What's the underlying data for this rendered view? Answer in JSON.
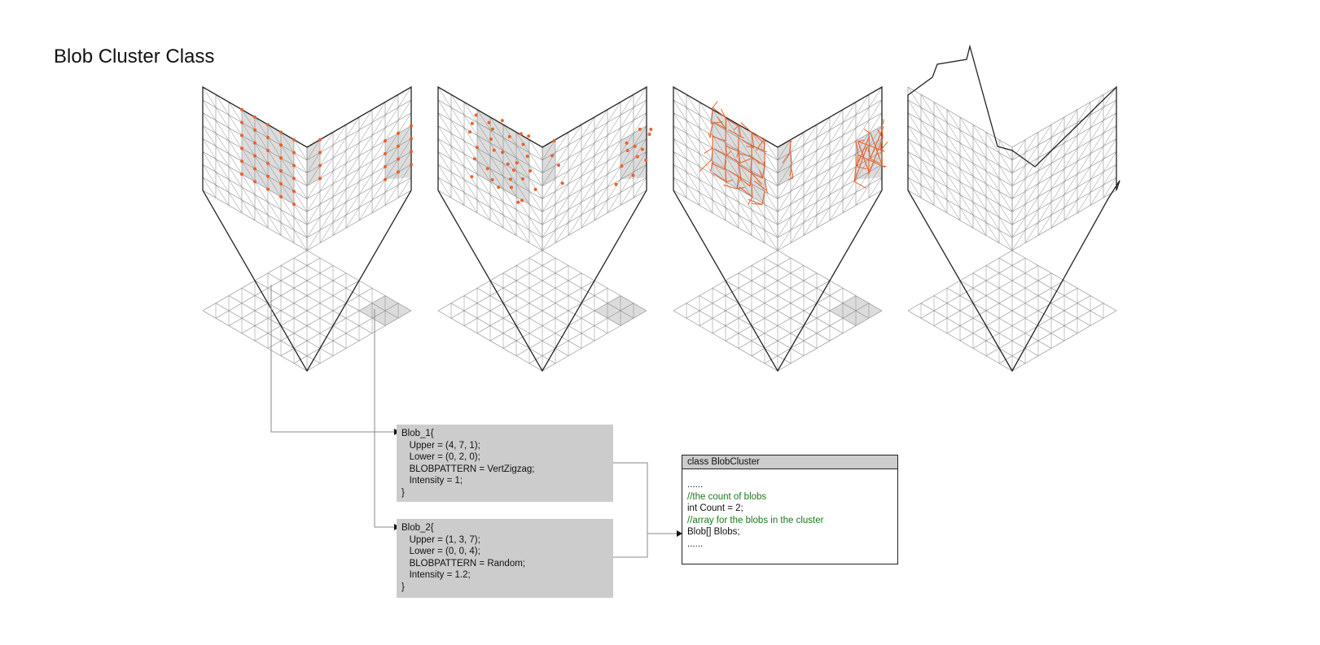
{
  "title": "Blob Cluster Class",
  "colors": {
    "accent": "#e8622c",
    "grid": "#888888",
    "outline": "#222222",
    "shade": "#dcdcdc",
    "code_bg": "#cccccc",
    "comment": "#1a7a1a"
  },
  "panels": [
    {
      "name": "blob-point-markers"
    },
    {
      "name": "blob-scattered-points"
    },
    {
      "name": "blob-connection-mesh"
    },
    {
      "name": "deformed-cube-mesh"
    }
  ],
  "blobs": [
    {
      "lines": [
        "Blob_1{",
        "   Upper = (4, 7, 1);",
        "   Lower = (0, 2, 0);",
        "   BLOBPATTERN = VertZigzag;",
        "   Intensity = 1;",
        "}"
      ]
    },
    {
      "lines": [
        "Blob_2{",
        "   Upper = (1, 3, 7);",
        "   Lower = (0, 0, 4);",
        "   BLOBPATTERN = Random;",
        "   Intensity = 1.2;",
        "}"
      ]
    }
  ],
  "class_box": {
    "header": "class BlobCluster",
    "lines": [
      {
        "text": "......",
        "comment": false
      },
      {
        "text": "//the count of blobs",
        "comment": true
      },
      {
        "text": "int Count = 2;",
        "comment": false
      },
      {
        "text": "//array for the blobs in the cluster",
        "comment": true
      },
      {
        "text": "Blob[] Blobs;",
        "comment": false
      },
      {
        "text": "......",
        "comment": false
      }
    ]
  }
}
